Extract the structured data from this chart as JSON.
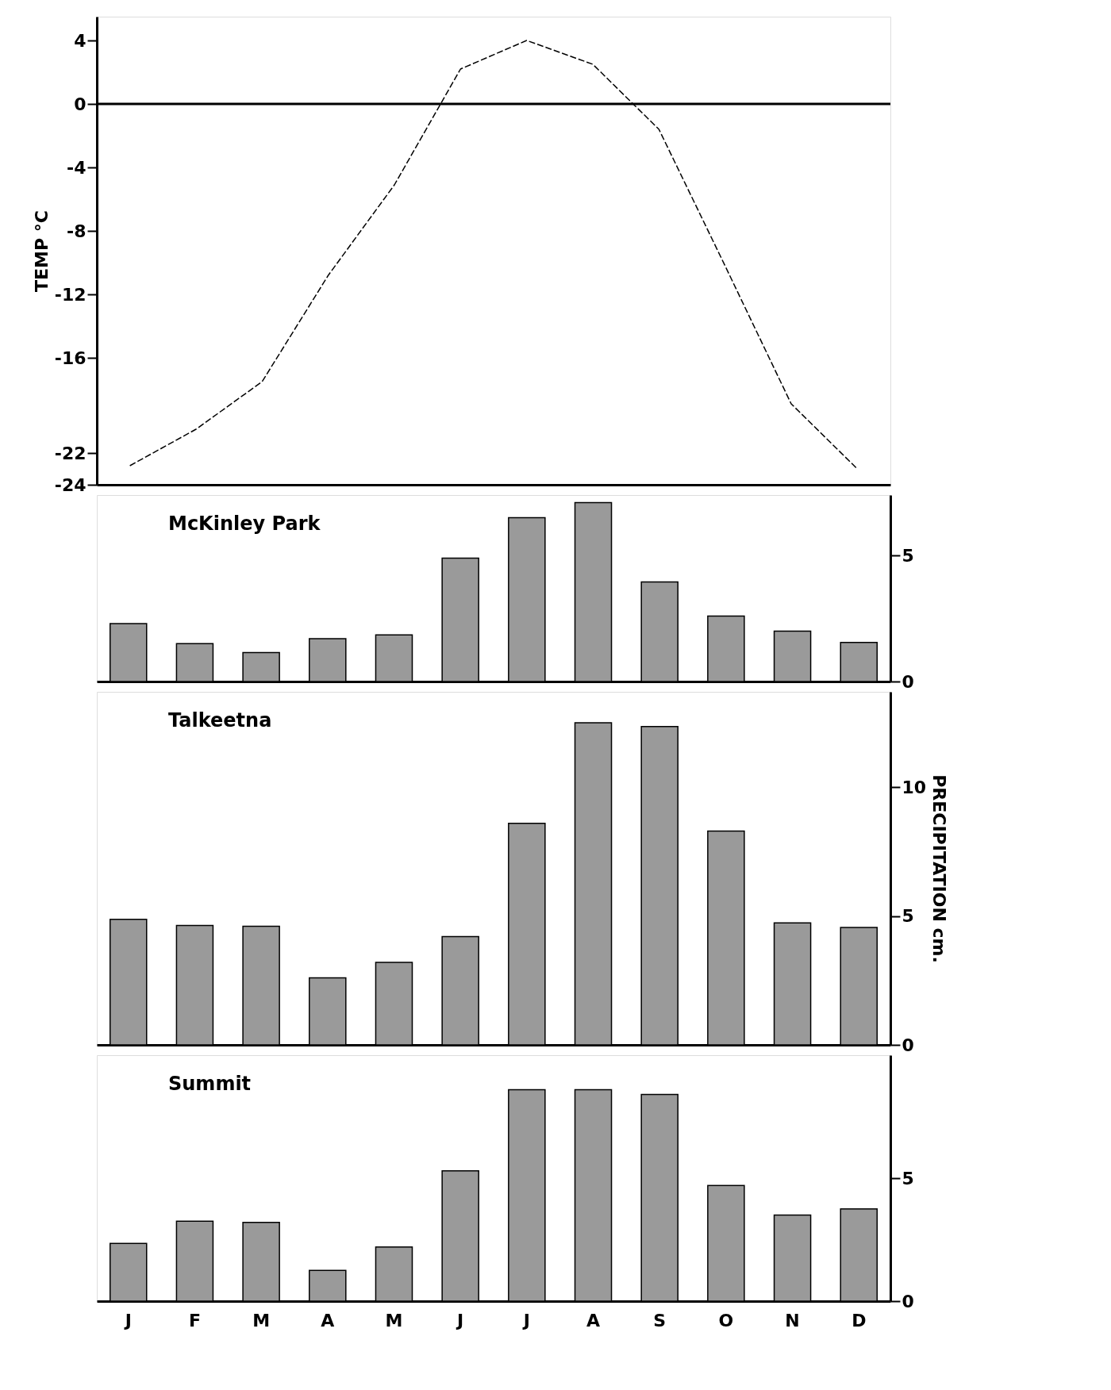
{
  "chart_data": [
    {
      "type": "line",
      "ylabel": "TEMP °C",
      "categories": [
        null,
        null,
        null,
        null,
        null,
        null,
        null,
        null,
        null,
        null,
        null,
        null
      ],
      "series": [
        {
          "color": "#000000",
          "line_style": "dashed",
          "values": [
            -22.8,
            -20.5,
            -17.5,
            -10.8,
            -5.1,
            2.2,
            4.0,
            2.5,
            -1.6,
            -10.2,
            -18.9,
            -23.0
          ]
        }
      ],
      "ylim": [
        -24,
        5.5
      ],
      "yticks": [
        4,
        0,
        -4,
        -8,
        -12,
        -16,
        -22,
        -24
      ],
      "ref_lines": [
        {
          "axis": "y",
          "value": 0,
          "color": "#000000"
        }
      ],
      "tick_labels": "y",
      "grid": false
    },
    {
      "type": "bar",
      "annotations": [
        "McKinley Park"
      ],
      "categories": [
        null,
        null,
        null,
        null,
        null,
        null,
        null,
        null,
        null,
        null,
        null,
        null
      ],
      "series": [
        {
          "color": "#9a9a9a",
          "values": [
            2.3,
            1.5,
            1.15,
            1.7,
            1.85,
            4.9,
            6.5,
            7.1,
            3.95,
            2.6,
            2.0,
            1.55
          ]
        }
      ],
      "ylim": [
        0,
        7.4
      ],
      "yticks": [
        0,
        5
      ],
      "tick_labels": "y",
      "grid": false
    },
    {
      "type": "bar",
      "annotations": [
        "Talkeetna"
      ],
      "ylabel": "PRECIPITATION cm.",
      "categories": [
        null,
        null,
        null,
        null,
        null,
        null,
        null,
        null,
        null,
        null,
        null,
        null
      ],
      "series": [
        {
          "color": "#9a9a9a",
          "values": [
            4.87,
            4.63,
            4.6,
            2.6,
            3.2,
            4.2,
            8.6,
            12.5,
            12.35,
            8.3,
            4.73,
            4.56
          ]
        }
      ],
      "ylim": [
        0,
        13.7
      ],
      "yticks": [
        0,
        5,
        10
      ],
      "tick_labels": "y",
      "grid": false
    },
    {
      "type": "bar",
      "annotations": [
        "Summit"
      ],
      "categories": [
        "J",
        "F",
        "M",
        "A",
        "M",
        "J",
        "J",
        "A",
        "S",
        "O",
        "N",
        "D"
      ],
      "series": [
        {
          "color": "#9a9a9a",
          "values": [
            2.35,
            3.25,
            3.2,
            1.25,
            2.2,
            5.3,
            8.6,
            8.6,
            8.4,
            4.7,
            3.5,
            3.75
          ]
        }
      ],
      "ylim": [
        0,
        10.0
      ],
      "yticks": [
        0,
        5
      ],
      "grid": false
    }
  ]
}
